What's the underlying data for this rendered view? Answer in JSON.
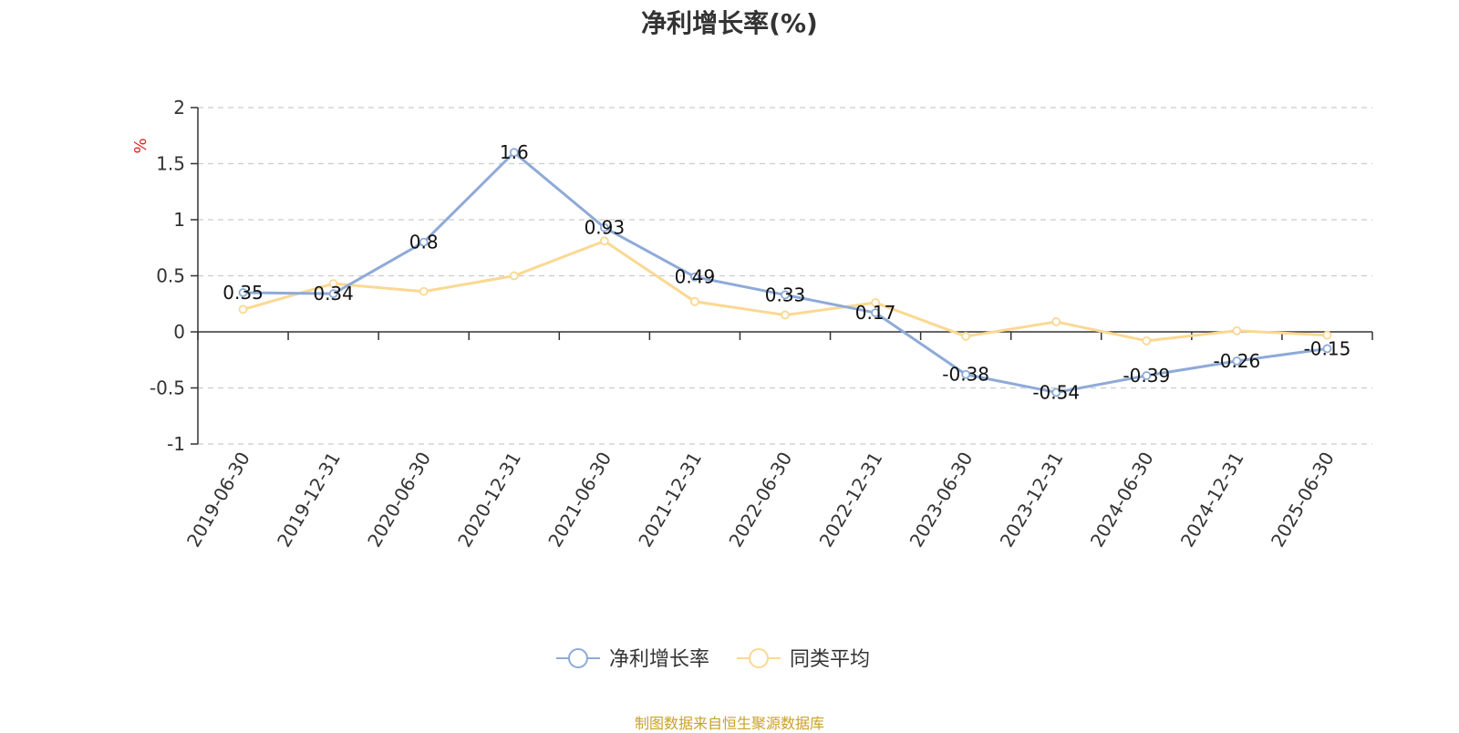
{
  "title": "净利增长率(%)",
  "source": "制图数据来自恒生聚源数据库",
  "colors": {
    "series1": "#8eaad8",
    "series2": "#fbd892",
    "source": "#c9a227",
    "ylabel": "#e02020",
    "grid": "#cccccc",
    "axis": "#333333"
  },
  "chart_data": {
    "type": "line",
    "title": "净利增长率(%)",
    "ylabel": "%",
    "xlabel": "",
    "ylim": [
      -1,
      2
    ],
    "yticks": [
      2,
      1.5,
      1,
      0.5,
      0,
      -0.5,
      -1
    ],
    "grid": true,
    "legend_position": "bottom-center",
    "categories": [
      "2019-06-30",
      "2019-12-31",
      "2020-06-30",
      "2020-12-31",
      "2021-06-30",
      "2021-12-31",
      "2022-06-30",
      "2022-12-31",
      "2023-06-30",
      "2023-12-31",
      "2024-06-30",
      "2024-12-31",
      "2025-06-30"
    ],
    "series": [
      {
        "name": "净利增长率",
        "values": [
          0.35,
          0.34,
          0.8,
          1.6,
          0.93,
          0.49,
          0.33,
          0.17,
          -0.38,
          -0.54,
          -0.39,
          -0.26,
          -0.15
        ],
        "labeled": true
      },
      {
        "name": "同类平均",
        "values": [
          0.2,
          0.43,
          0.36,
          0.5,
          0.81,
          0.27,
          0.15,
          0.26,
          -0.04,
          0.09,
          -0.08,
          0.01,
          -0.03
        ],
        "labeled": false
      }
    ]
  }
}
